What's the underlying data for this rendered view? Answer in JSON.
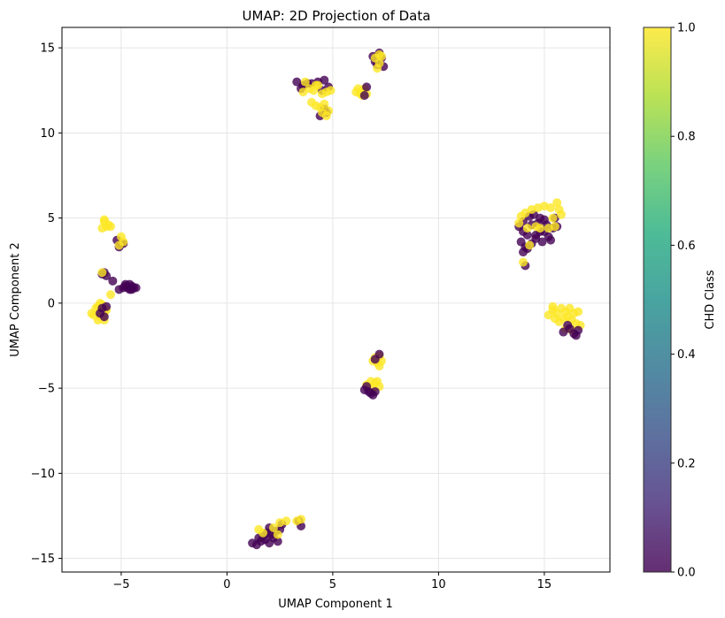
{
  "chart_data": {
    "type": "scatter",
    "title": "UMAP: 2D Projection of Data",
    "xlabel": "UMAP Component 1",
    "ylabel": "UMAP Component 2",
    "xlim": [
      -7.8,
      18.1
    ],
    "ylim": [
      -15.8,
      16.2
    ],
    "xticks": [
      -5,
      0,
      5,
      10,
      15
    ],
    "yticks": [
      -15,
      -10,
      -5,
      0,
      5,
      10,
      15
    ],
    "grid": true,
    "colormap": "viridis",
    "colorbar": {
      "label": "CHD Class",
      "min": 0.0,
      "max": 1.0,
      "ticks": [
        0.0,
        0.2,
        0.4,
        0.6,
        0.8,
        1.0
      ],
      "tick_labels": [
        "0.0",
        "0.2",
        "0.4",
        "0.6",
        "0.8",
        "1.0"
      ]
    },
    "class_colors": {
      "0": "#440154",
      "1": "#fde725"
    },
    "clusters": [
      {
        "class": 1,
        "points": [
          [
            -6.3,
            -0.7
          ],
          [
            -6.1,
            -0.2
          ],
          [
            -6.0,
            -0.8
          ],
          [
            -5.9,
            -0.5
          ],
          [
            -6.2,
            -0.3
          ],
          [
            -5.8,
            -1.0
          ],
          [
            -6.0,
            0.0
          ],
          [
            -5.7,
            -0.4
          ],
          [
            -6.4,
            -0.6
          ],
          [
            -5.9,
            -0.1
          ],
          [
            -5.8,
            -0.6
          ],
          [
            -6.1,
            -1.0
          ]
        ]
      },
      {
        "class": 0,
        "points": [
          [
            -5.9,
            -0.3
          ],
          [
            -5.7,
            -0.2
          ],
          [
            -6.0,
            -0.6
          ],
          [
            -5.8,
            -0.8
          ]
        ]
      },
      {
        "class": 1,
        "points": [
          [
            -5.9,
            4.4
          ],
          [
            -5.8,
            4.8
          ],
          [
            -5.7,
            4.5
          ],
          [
            -5.6,
            4.6
          ],
          [
            -5.5,
            4.5
          ],
          [
            -5.8,
            4.9
          ]
        ]
      },
      {
        "class": 0,
        "points": [
          [
            -5.9,
            1.7
          ],
          [
            -5.7,
            1.6
          ],
          [
            -5.8,
            1.8
          ],
          [
            -5.4,
            1.3
          ]
        ]
      },
      {
        "class": 1,
        "points": [
          [
            -5.5,
            0.5
          ],
          [
            -5.9,
            1.8
          ]
        ]
      },
      {
        "class": 0,
        "points": [
          [
            -5.2,
            3.7
          ],
          [
            -5.0,
            3.5
          ],
          [
            -5.1,
            3.3
          ],
          [
            -4.9,
            3.5
          ]
        ]
      },
      {
        "class": 1,
        "points": [
          [
            -5.0,
            3.9
          ],
          [
            -5.1,
            3.4
          ],
          [
            -4.9,
            3.6
          ]
        ]
      },
      {
        "class": 0,
        "points": [
          [
            -5.1,
            0.8
          ],
          [
            -4.9,
            0.9
          ],
          [
            -4.8,
            1.0
          ],
          [
            -4.7,
            0.9
          ],
          [
            -4.5,
            1.0
          ],
          [
            -4.6,
            0.8
          ],
          [
            -4.4,
            0.9
          ],
          [
            -4.8,
            1.1
          ],
          [
            -4.6,
            1.1
          ],
          [
            -4.5,
            0.8
          ],
          [
            -4.3,
            0.9
          ]
        ]
      },
      {
        "class": 0,
        "points": [
          [
            3.3,
            13.0
          ],
          [
            3.6,
            12.8
          ],
          [
            3.8,
            12.9
          ],
          [
            4.0,
            12.9
          ],
          [
            4.3,
            13.0
          ],
          [
            4.6,
            13.1
          ],
          [
            4.8,
            12.7
          ],
          [
            4.4,
            11.0
          ],
          [
            4.6,
            11.4
          ],
          [
            4.7,
            11.2
          ],
          [
            3.5,
            12.6
          ],
          [
            4.5,
            12.5
          ]
        ]
      },
      {
        "class": 1,
        "points": [
          [
            3.6,
            12.4
          ],
          [
            3.9,
            12.6
          ],
          [
            4.1,
            12.5
          ],
          [
            4.3,
            12.8
          ],
          [
            4.5,
            12.3
          ],
          [
            4.7,
            12.4
          ],
          [
            4.9,
            12.5
          ],
          [
            4.0,
            11.8
          ],
          [
            4.2,
            11.6
          ],
          [
            4.4,
            11.5
          ],
          [
            4.6,
            11.7
          ],
          [
            4.7,
            11.0
          ],
          [
            4.8,
            11.3
          ],
          [
            4.5,
            11.2
          ],
          [
            4.2,
            12.8
          ],
          [
            3.7,
            13.0
          ]
        ]
      },
      {
        "class": 1,
        "points": [
          [
            6.1,
            12.4
          ],
          [
            6.3,
            12.3
          ],
          [
            6.4,
            12.5
          ],
          [
            6.5,
            12.6
          ],
          [
            6.2,
            12.6
          ],
          [
            6.6,
            12.3
          ],
          [
            6.4,
            12.2
          ]
        ]
      },
      {
        "class": 0,
        "points": [
          [
            6.5,
            12.2
          ],
          [
            6.6,
            12.7
          ]
        ]
      },
      {
        "class": 0,
        "points": [
          [
            6.9,
            14.5
          ],
          [
            7.0,
            14.2
          ],
          [
            7.2,
            14.6
          ],
          [
            7.3,
            14.4
          ],
          [
            7.4,
            13.9
          ],
          [
            7.1,
            14.0
          ],
          [
            7.2,
            14.7
          ]
        ]
      },
      {
        "class": 1,
        "points": [
          [
            7.0,
            14.4
          ],
          [
            7.2,
            14.1
          ],
          [
            7.3,
            14.5
          ],
          [
            7.1,
            13.8
          ],
          [
            7.2,
            14.6
          ]
        ]
      },
      {
        "class": 0,
        "points": [
          [
            13.8,
            4.5
          ],
          [
            14.0,
            4.8
          ],
          [
            14.2,
            4.0
          ],
          [
            14.4,
            4.6
          ],
          [
            14.6,
            3.8
          ],
          [
            14.8,
            4.2
          ],
          [
            15.0,
            4.9
          ],
          [
            15.2,
            3.9
          ],
          [
            15.4,
            4.4
          ],
          [
            13.9,
            3.6
          ],
          [
            14.1,
            3.3
          ],
          [
            14.3,
            5.1
          ],
          [
            14.5,
            5.2
          ],
          [
            14.7,
            4.7
          ],
          [
            14.9,
            3.6
          ],
          [
            15.1,
            4.6
          ],
          [
            15.3,
            3.7
          ],
          [
            14.0,
            4.2
          ],
          [
            14.2,
            3.2
          ],
          [
            14.0,
            3.0
          ],
          [
            14.1,
            2.2
          ],
          [
            15.6,
            4.5
          ],
          [
            15.5,
            5.0
          ],
          [
            14.6,
            4.0
          ],
          [
            14.8,
            5.0
          ],
          [
            15.0,
            4.2
          ],
          [
            14.4,
            3.5
          ]
        ]
      },
      {
        "class": 1,
        "points": [
          [
            13.9,
            5.1
          ],
          [
            14.1,
            5.3
          ],
          [
            14.4,
            5.5
          ],
          [
            14.7,
            5.6
          ],
          [
            15.0,
            5.7
          ],
          [
            15.3,
            5.6
          ],
          [
            15.6,
            5.9
          ],
          [
            15.7,
            5.5
          ],
          [
            15.8,
            5.2
          ],
          [
            14.2,
            4.4
          ],
          [
            14.6,
            4.5
          ],
          [
            15.2,
            4.4
          ],
          [
            15.5,
            4.5
          ],
          [
            14.0,
            2.4
          ],
          [
            14.3,
            3.4
          ],
          [
            13.8,
            4.7
          ],
          [
            15.4,
            5.0
          ],
          [
            14.8,
            4.4
          ]
        ]
      },
      {
        "class": 1,
        "points": [
          [
            15.2,
            -0.7
          ],
          [
            15.4,
            -0.4
          ],
          [
            15.6,
            -0.6
          ],
          [
            15.8,
            -0.3
          ],
          [
            16.0,
            -0.5
          ],
          [
            16.2,
            -0.3
          ],
          [
            16.4,
            -0.6
          ],
          [
            15.5,
            -0.9
          ],
          [
            15.7,
            -1.1
          ],
          [
            15.9,
            -0.9
          ],
          [
            16.1,
            -0.8
          ],
          [
            16.3,
            -1.0
          ],
          [
            16.5,
            -1.2
          ],
          [
            16.7,
            -1.3
          ],
          [
            16.0,
            -1.5
          ],
          [
            16.3,
            -1.6
          ],
          [
            15.4,
            -0.2
          ],
          [
            16.6,
            -0.5
          ]
        ]
      },
      {
        "class": 0,
        "points": [
          [
            15.9,
            -1.7
          ],
          [
            16.2,
            -1.5
          ],
          [
            16.4,
            -1.8
          ],
          [
            16.6,
            -1.6
          ],
          [
            16.5,
            -1.9
          ],
          [
            16.1,
            -1.3
          ]
        ]
      },
      {
        "class": 1,
        "points": [
          [
            7.0,
            -3.2
          ],
          [
            7.2,
            -3.1
          ],
          [
            7.1,
            -3.5
          ],
          [
            7.3,
            -3.4
          ],
          [
            7.2,
            -3.7
          ],
          [
            6.9,
            -3.4
          ]
        ]
      },
      {
        "class": 0,
        "points": [
          [
            7.0,
            -3.3
          ],
          [
            7.2,
            -3.0
          ]
        ]
      },
      {
        "class": 1,
        "points": [
          [
            6.6,
            -4.8
          ],
          [
            6.8,
            -4.6
          ],
          [
            7.0,
            -4.7
          ],
          [
            7.2,
            -4.9
          ],
          [
            6.9,
            -5.0
          ],
          [
            7.1,
            -4.6
          ]
        ]
      },
      {
        "class": 0,
        "points": [
          [
            6.5,
            -5.1
          ],
          [
            6.7,
            -5.2
          ],
          [
            6.9,
            -5.4
          ],
          [
            7.0,
            -5.2
          ],
          [
            6.6,
            -4.9
          ],
          [
            6.8,
            -5.3
          ]
        ]
      },
      {
        "class": 0,
        "points": [
          [
            1.2,
            -14.1
          ],
          [
            1.4,
            -14.2
          ],
          [
            1.6,
            -14.0
          ],
          [
            1.8,
            -13.9
          ],
          [
            2.0,
            -14.1
          ],
          [
            2.2,
            -13.8
          ],
          [
            1.9,
            -13.5
          ],
          [
            2.1,
            -13.6
          ],
          [
            2.3,
            -13.4
          ],
          [
            2.5,
            -13.3
          ],
          [
            1.7,
            -13.7
          ],
          [
            2.4,
            -14.0
          ],
          [
            2.0,
            -13.2
          ],
          [
            3.5,
            -13.1
          ],
          [
            3.4,
            -12.8
          ],
          [
            2.6,
            -13.0
          ],
          [
            1.5,
            -13.8
          ]
        ]
      },
      {
        "class": 1,
        "points": [
          [
            1.5,
            -13.3
          ],
          [
            1.7,
            -13.5
          ],
          [
            2.5,
            -12.9
          ],
          [
            2.8,
            -12.8
          ],
          [
            2.4,
            -13.6
          ],
          [
            3.3,
            -12.8
          ],
          [
            3.5,
            -12.7
          ],
          [
            2.2,
            -13.2
          ]
        ]
      }
    ]
  }
}
